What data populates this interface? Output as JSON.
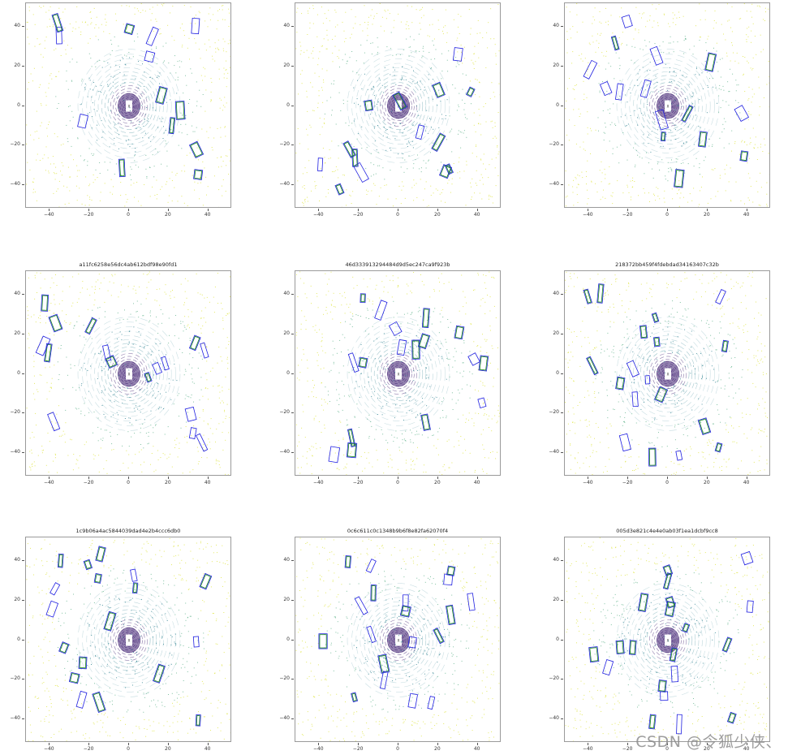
{
  "figure": {
    "grid": {
      "rows": 3,
      "cols": 3
    },
    "watermark": "CSDN @令狐少侠、"
  },
  "chart_data": [
    {
      "type": "scatter",
      "title": "",
      "title_visible": false,
      "xlabel": "",
      "ylabel": "",
      "xlim": [
        -52,
        52
      ],
      "ylim": [
        -52,
        52
      ],
      "xticks": [
        "−40",
        "−20",
        "0",
        "20",
        "40"
      ],
      "yticks": [
        "40",
        "20",
        "0",
        "−20",
        "−40"
      ],
      "grid": false,
      "legend": "none",
      "description": "BEV LiDAR point cloud (colored by height: purple→yellow) with blue predicted and green ground-truth 3D boxes"
    },
    {
      "type": "scatter",
      "title": "",
      "title_visible": false,
      "xlabel": "",
      "ylabel": "",
      "xlim": [
        -52,
        52
      ],
      "ylim": [
        -52,
        52
      ],
      "xticks": [
        "−40",
        "−20",
        "0",
        "20",
        "40"
      ],
      "yticks": [
        "40",
        "20",
        "0",
        "−20",
        "−40"
      ],
      "grid": false,
      "legend": "none",
      "description": "BEV LiDAR point cloud with detection boxes"
    },
    {
      "type": "scatter",
      "title": "",
      "title_visible": false,
      "xlabel": "",
      "ylabel": "",
      "xlim": [
        -52,
        52
      ],
      "ylim": [
        -52,
        52
      ],
      "xticks": [
        "−40",
        "−20",
        "0",
        "20",
        "40"
      ],
      "yticks": [
        "40",
        "20",
        "0",
        "−20",
        "−40"
      ],
      "grid": false,
      "legend": "none",
      "description": "BEV LiDAR point cloud with detection boxes"
    },
    {
      "type": "scatter",
      "title": "a11fc6258e56dc4ab612bdf98e90fd1",
      "xlabel": "",
      "ylabel": "",
      "xlim": [
        -52,
        52
      ],
      "ylim": [
        -52,
        52
      ],
      "xticks": [
        "−40",
        "−20",
        "0",
        "20",
        "40"
      ],
      "yticks": [
        "40",
        "20",
        "0",
        "−20",
        "−40"
      ],
      "grid": false,
      "legend": "none"
    },
    {
      "type": "scatter",
      "title": "46d333913294484d9d5ec247ca9f923b",
      "xlabel": "",
      "ylabel": "",
      "xlim": [
        -52,
        52
      ],
      "ylim": [
        -52,
        52
      ],
      "xticks": [
        "−40",
        "−20",
        "0",
        "20",
        "40"
      ],
      "yticks": [
        "40",
        "20",
        "0",
        "−20",
        "−40"
      ],
      "grid": false,
      "legend": "none"
    },
    {
      "type": "scatter",
      "title": "218372bb459f4fdebdad34163407c32b",
      "xlabel": "",
      "ylabel": "",
      "xlim": [
        -52,
        52
      ],
      "ylim": [
        -52,
        52
      ],
      "xticks": [
        "−40",
        "−20",
        "0",
        "20",
        "40"
      ],
      "yticks": [
        "40",
        "20",
        "0",
        "−20",
        "−40"
      ],
      "grid": false,
      "legend": "none"
    },
    {
      "type": "scatter",
      "title": "1c9b06a4ac5844039dad4e2b4ccc6db0",
      "xlabel": "",
      "ylabel": "",
      "xlim": [
        -52,
        52
      ],
      "ylim": [
        -52,
        52
      ],
      "xticks": [
        "−40",
        "−20",
        "0",
        "20",
        "40"
      ],
      "yticks": [
        "40",
        "20",
        "0",
        "−20",
        "−40"
      ],
      "grid": false,
      "legend": "none"
    },
    {
      "type": "scatter",
      "title": "0c6c611c0c1348b9b6f8e82fa62070f4",
      "xlabel": "",
      "ylabel": "",
      "xlim": [
        -52,
        52
      ],
      "ylim": [
        -52,
        52
      ],
      "xticks": [
        "−40",
        "−20",
        "0",
        "20",
        "40"
      ],
      "yticks": [
        "40",
        "20",
        "0",
        "−20",
        "−40"
      ],
      "grid": false,
      "legend": "none"
    },
    {
      "type": "scatter",
      "title": "005d3e821c4e4e0ab03f1ea1dcbf9cc8",
      "xlabel": "",
      "ylabel": "",
      "xlim": [
        -52,
        52
      ],
      "ylim": [
        -52,
        52
      ],
      "xticks": [
        "−40",
        "−20",
        "0",
        "20",
        "40"
      ],
      "yticks": [
        "40",
        "20",
        "0",
        "−20",
        "−40"
      ],
      "grid": false,
      "legend": "none"
    }
  ],
  "colors": {
    "pred_box": "#2020e0",
    "gt_box": "#1a8a1a",
    "near_points": "#3b1a6e",
    "mid_points": "#2a7f8e",
    "far_points": "#d9e021",
    "axes_border": "#9a9a9a"
  }
}
